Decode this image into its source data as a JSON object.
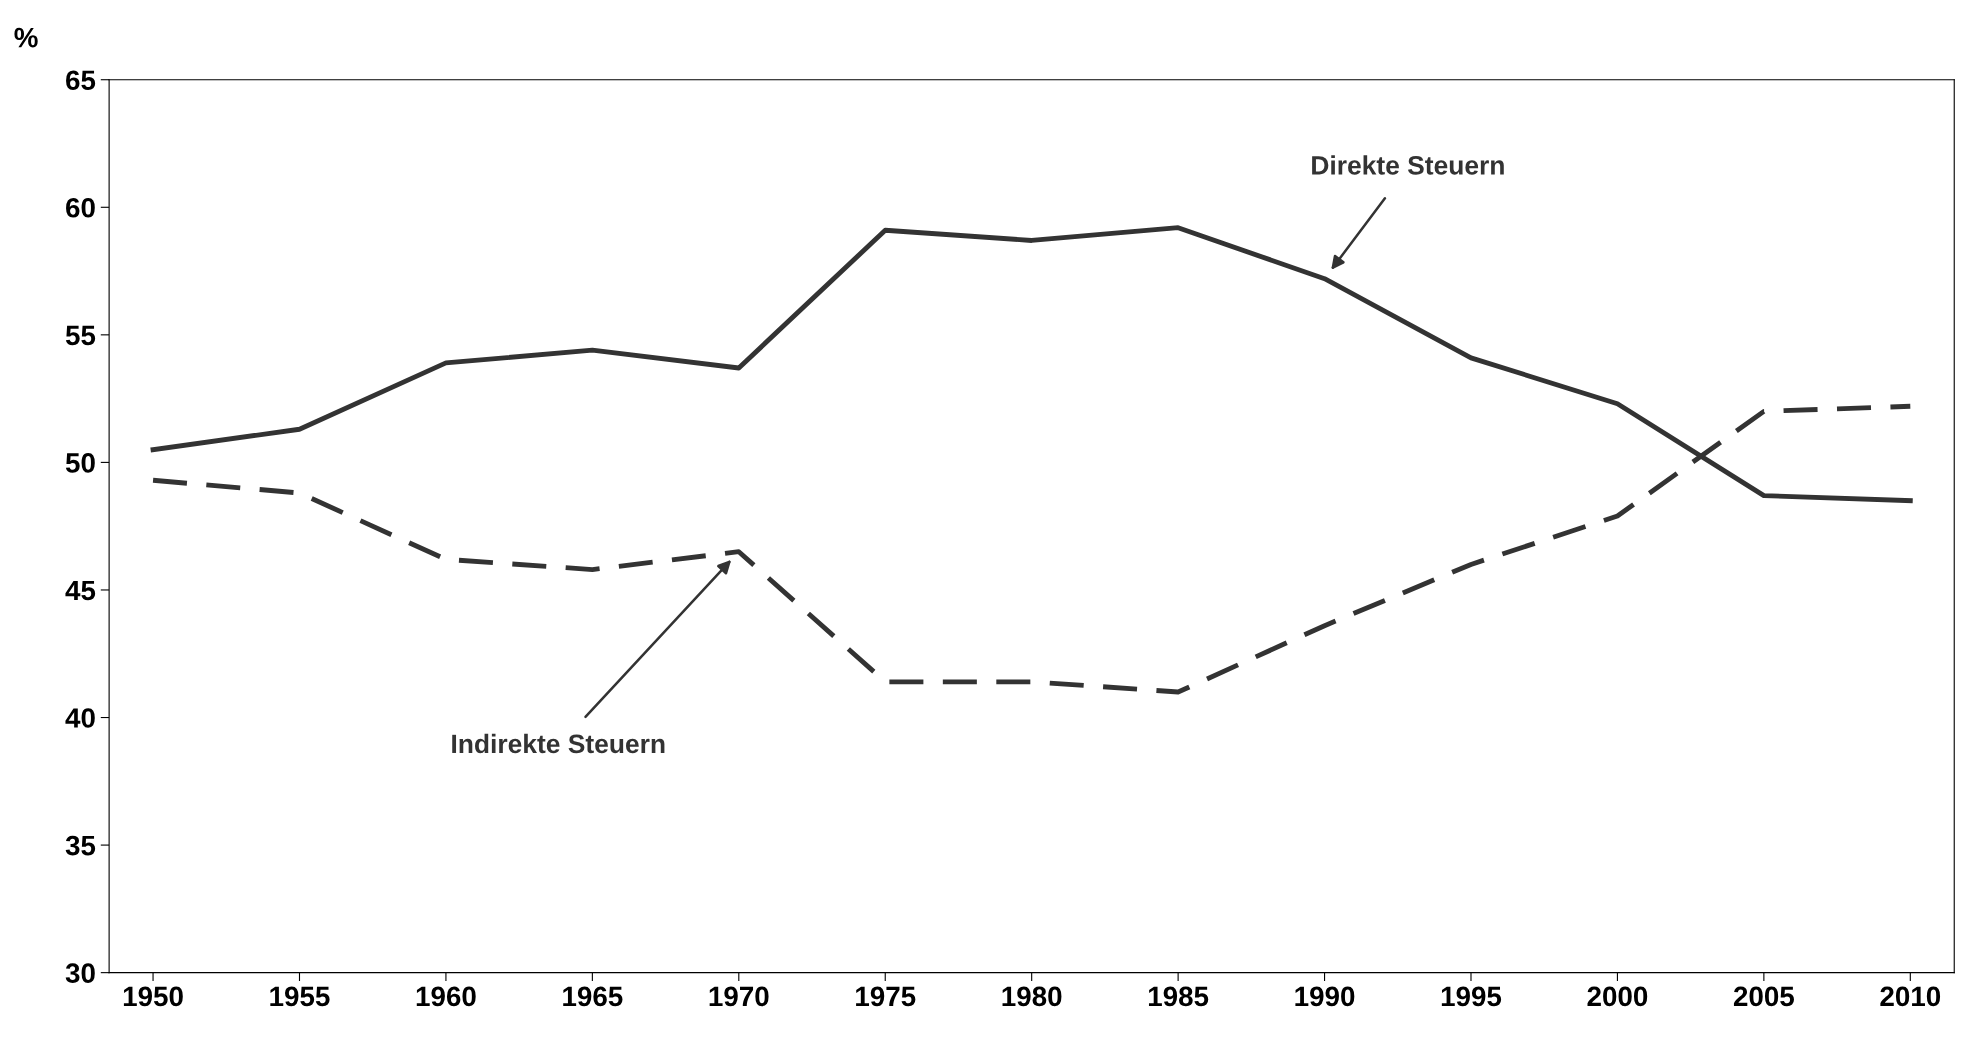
{
  "chart_data": {
    "type": "line",
    "ylabel": "%",
    "categories": [
      "1950",
      "1955",
      "1960",
      "1965",
      "1970",
      "1975",
      "1980",
      "1985",
      "1990",
      "1995",
      "2000",
      "2005",
      "2010"
    ],
    "series": [
      {
        "name": "Direkte Steuern",
        "color": "#333333",
        "line_style": "solid",
        "values": [
          50.5,
          51.3,
          53.9,
          54.4,
          53.7,
          59.1,
          58.7,
          59.2,
          57.2,
          54.1,
          52.3,
          48.7,
          48.5
        ]
      },
      {
        "name": "Indirekte Steuern",
        "color": "#333333",
        "line_style": "dashed",
        "values": [
          49.3,
          48.8,
          46.2,
          45.8,
          46.5,
          41.4,
          41.4,
          41.0,
          43.6,
          46.0,
          47.9,
          52.0,
          52.2
        ]
      }
    ],
    "ylim": [
      30,
      65
    ],
    "yticks": [
      30,
      35,
      40,
      45,
      50,
      55,
      60,
      65
    ],
    "grid": false,
    "legend": false,
    "marker": "none"
  }
}
